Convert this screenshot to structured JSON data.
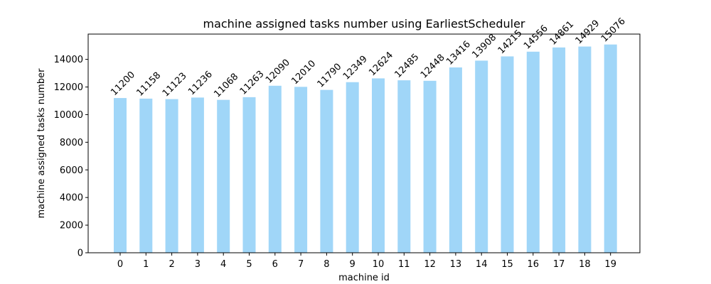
{
  "chart_data": {
    "type": "bar",
    "title": "machine assigned tasks number using EarliestScheduler",
    "xlabel": "machine id",
    "ylabel": "machine assigned tasks number",
    "categories": [
      "0",
      "1",
      "2",
      "3",
      "4",
      "5",
      "6",
      "7",
      "8",
      "9",
      "10",
      "11",
      "12",
      "13",
      "14",
      "15",
      "16",
      "17",
      "18",
      "19"
    ],
    "values": [
      11200,
      11158,
      11123,
      11236,
      11068,
      11263,
      12090,
      12010,
      11790,
      12349,
      12624,
      12485,
      12448,
      13416,
      13908,
      14215,
      14556,
      14861,
      14929,
      15076
    ],
    "data_labels": [
      "11200",
      "11158",
      "11123",
      "11236",
      "11068",
      "11263",
      "12090",
      "12010",
      "11790",
      "12349",
      "12624",
      "12485",
      "12448",
      "13416",
      "13908",
      "14215",
      "14556",
      "14861",
      "14929",
      "15076"
    ],
    "yticks": [
      0,
      2000,
      4000,
      6000,
      8000,
      10000,
      12000,
      14000
    ],
    "ylim": [
      0,
      15830
    ],
    "bar_color": "#a0d6f8",
    "grid": false,
    "legend": "none"
  }
}
